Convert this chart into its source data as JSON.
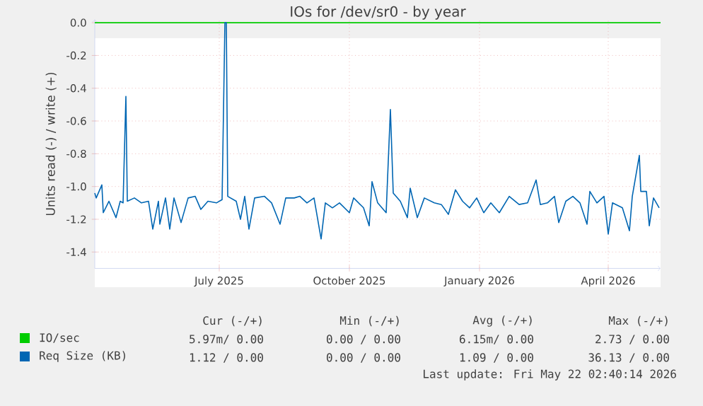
{
  "chart_data": {
    "type": "line",
    "title": "IOs for /dev/sr0 - by year",
    "ylabel": "Units read (-) / write (+)",
    "xlim": [
      "2025-04-17",
      "2026-05-22"
    ],
    "xticks": [
      {
        "value": "2025-07-14",
        "label": "July 2025"
      },
      {
        "value": "2025-10-14",
        "label": "October 2025"
      },
      {
        "value": "2026-01-14",
        "label": "January 2026"
      },
      {
        "value": "2026-04-15",
        "label": "April 2026"
      }
    ],
    "ylim": [
      -1.5,
      0.02
    ],
    "yticks": [
      {
        "value": 0,
        "label": "0.0"
      },
      {
        "value": -0.2,
        "label": "-0.2"
      },
      {
        "value": -0.4,
        "label": "-0.4"
      },
      {
        "value": -0.6,
        "label": "-0.6"
      },
      {
        "value": -0.8,
        "label": "-0.8"
      },
      {
        "value": -1.0,
        "label": "-1.0"
      },
      {
        "value": -1.2,
        "label": "-1.2"
      },
      {
        "value": -1.4,
        "label": "-1.4"
      }
    ],
    "grid": true,
    "legend": "bottom",
    "series": [
      {
        "name": "IO/sec",
        "color": "#00cc00",
        "x": [
          "2025-04-17",
          "2026-05-22"
        ],
        "values": [
          0,
          0
        ]
      },
      {
        "name": "Req Size (KB)",
        "color": "#0066b3",
        "x": [
          "2025-04-17",
          "2025-04-18",
          "2025-04-22",
          "2025-04-23",
          "2025-04-27",
          "2025-05-02",
          "2025-05-05",
          "2025-05-07",
          "2025-05-09",
          "2025-05-10",
          "2025-05-15",
          "2025-05-20",
          "2025-05-25",
          "2025-05-28",
          "2025-06-01",
          "2025-06-02",
          "2025-06-06",
          "2025-06-09",
          "2025-06-12",
          "2025-06-17",
          "2025-06-22",
          "2025-06-27",
          "2025-07-01",
          "2025-07-06",
          "2025-07-12",
          "2025-07-16",
          "2025-07-18",
          "2025-07-19",
          "2025-07-20",
          "2025-07-26",
          "2025-07-29",
          "2025-08-01",
          "2025-08-04",
          "2025-08-08",
          "2025-08-15",
          "2025-08-20",
          "2025-08-26",
          "2025-08-30",
          "2025-09-05",
          "2025-09-09",
          "2025-09-14",
          "2025-09-19",
          "2025-09-24",
          "2025-09-27",
          "2025-10-02",
          "2025-10-07",
          "2025-10-14",
          "2025-10-17",
          "2025-10-24",
          "2025-10-28",
          "2025-10-30",
          "2025-11-03",
          "2025-11-09",
          "2025-11-12",
          "2025-11-14",
          "2025-11-19",
          "2025-11-24",
          "2025-11-26",
          "2025-12-01",
          "2025-12-06",
          "2025-12-13",
          "2025-12-18",
          "2025-12-23",
          "2025-12-28",
          "2026-01-02",
          "2026-01-07",
          "2026-01-12",
          "2026-01-17",
          "2026-01-22",
          "2026-01-28",
          "2026-02-04",
          "2026-02-11",
          "2026-02-17",
          "2026-02-23",
          "2026-02-26",
          "2026-03-03",
          "2026-03-08",
          "2026-03-11",
          "2026-03-16",
          "2026-03-21",
          "2026-03-26",
          "2026-03-31",
          "2026-04-02",
          "2026-04-07",
          "2026-04-12",
          "2026-04-15",
          "2026-04-18",
          "2026-04-25",
          "2026-04-30",
          "2026-05-02",
          "2026-05-07",
          "2026-05-08",
          "2026-05-12",
          "2026-05-14",
          "2026-05-17",
          "2026-05-21"
        ],
        "values": [
          -1.04,
          -1.07,
          -0.99,
          -1.16,
          -1.09,
          -1.19,
          -1.09,
          -1.1,
          -0.45,
          -1.09,
          -1.07,
          -1.1,
          -1.09,
          -1.26,
          -1.09,
          -1.23,
          -1.07,
          -1.26,
          -1.07,
          -1.22,
          -1.07,
          -1.06,
          -1.14,
          -1.09,
          -1.1,
          -1.08,
          0.0,
          0.0,
          -1.06,
          -1.09,
          -1.2,
          -1.06,
          -1.26,
          -1.07,
          -1.06,
          -1.1,
          -1.23,
          -1.07,
          -1.07,
          -1.06,
          -1.1,
          -1.07,
          -1.32,
          -1.1,
          -1.13,
          -1.1,
          -1.16,
          -1.07,
          -1.13,
          -1.24,
          -0.97,
          -1.1,
          -1.16,
          -0.53,
          -1.04,
          -1.09,
          -1.19,
          -1.01,
          -1.19,
          -1.07,
          -1.1,
          -1.11,
          -1.17,
          -1.02,
          -1.09,
          -1.13,
          -1.07,
          -1.16,
          -1.1,
          -1.16,
          -1.06,
          -1.11,
          -1.1,
          -0.96,
          -1.11,
          -1.1,
          -1.06,
          -1.22,
          -1.09,
          -1.06,
          -1.1,
          -1.23,
          -1.03,
          -1.1,
          -1.06,
          -1.29,
          -1.1,
          -1.13,
          -1.27,
          -1.06,
          -0.81,
          -1.03,
          -1.03,
          -1.24,
          -1.07,
          -1.13
        ]
      }
    ],
    "annotations": [
      "Cur (-/+)",
      "Min (-/+)",
      "Avg (-/+)",
      "Max (-/+)",
      "5.97m/ 0.00",
      "0.00 / 0.00",
      "6.15m/ 0.00",
      "2.73 / 0.00",
      "1.12 / 0.00",
      "0.00 / 0.00",
      "1.09 / 0.00",
      "36.13 / 0.00",
      "Last update: Fri May 22 02:40:14 2026"
    ]
  }
}
